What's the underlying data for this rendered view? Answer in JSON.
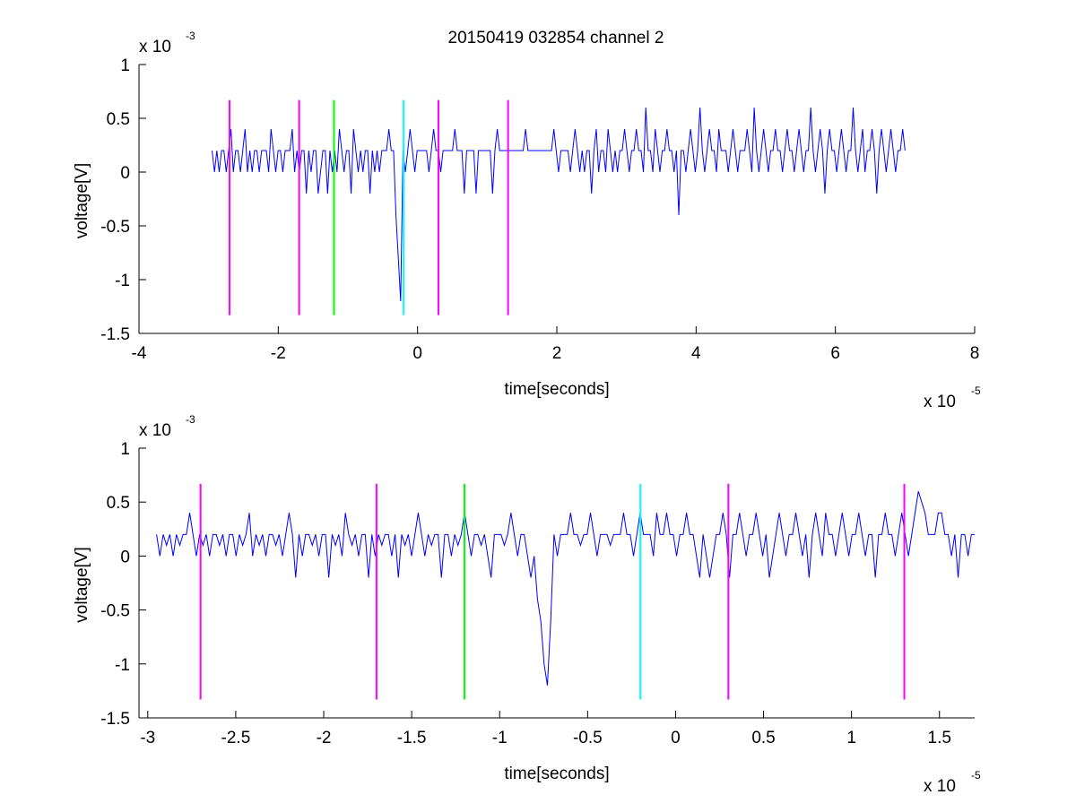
{
  "figure": {
    "title": "20150419 032854 channel 2"
  },
  "chart_data": [
    {
      "type": "line",
      "title": "20150419 032854 channel 2",
      "xlabel": "time[seconds]",
      "ylabel": "voltage[V]",
      "x_exponent_label": "x 10",
      "x_exponent_power": "-5",
      "y_exponent_label": "x 10",
      "y_exponent_power": "-3",
      "xlim": [
        -4,
        8
      ],
      "ylim": [
        -1.5,
        1
      ],
      "xticks": [
        -4,
        -2,
        0,
        2,
        4,
        6,
        8
      ],
      "xtick_labels": [
        "-4",
        "-2",
        "0",
        "2",
        "4",
        "6",
        "8"
      ],
      "yticks": [
        -1.5,
        -1,
        -0.5,
        0,
        0.5,
        1
      ],
      "ytick_labels": [
        "-1.5",
        "-1",
        "-0.5",
        "0",
        "0.5",
        "1"
      ],
      "grid": false,
      "series": [
        {
          "color": "#0000ff",
          "x_start": -2.95,
          "x_end": 7.0,
          "values": [
            0.2,
            0,
            0.2,
            0,
            0.2,
            0.2,
            0,
            0.2,
            0.4,
            0,
            0.2,
            0.2,
            0,
            0.2,
            0.4,
            0,
            0.2,
            0,
            0.2,
            0.2,
            0,
            0.2,
            0.2,
            0.2,
            0,
            0.4,
            0.2,
            0,
            0.2,
            0.2,
            0,
            0.2,
            0.2,
            0.2,
            0.4,
            0,
            0.2,
            0,
            0.2,
            0.2,
            -0.2,
            0.2,
            0,
            0.2,
            0.2,
            -0.2,
            0,
            0.2,
            0.2,
            -0.2,
            0.2,
            0,
            0.2,
            0,
            0.4,
            0.2,
            0,
            0.2,
            0.2,
            -0.2,
            0.4,
            0.2,
            0,
            0.2,
            0,
            0.2,
            0.2,
            -0.2,
            0.2,
            0,
            0.2,
            0,
            0.2,
            0.2,
            0.2,
            0.4,
            0.2,
            0.2,
            -0.4,
            -0.8,
            -1.2,
            0.2,
            0,
            0.2,
            0.4,
            0.2,
            0,
            0.2,
            0.2,
            0.2,
            0.2,
            0.2,
            0,
            0.2,
            0.4,
            0.2,
            0.2,
            0,
            0.2,
            0.2,
            0.2,
            0.2,
            0.2,
            0.4,
            0.2,
            0.2,
            0.2,
            -0.2,
            0.2,
            0.2,
            0.2,
            0.2,
            -0.2,
            0.2,
            0.2,
            0.2,
            0.2,
            0.2,
            0.2,
            -0.2,
            0.2,
            0.4,
            0.2,
            0.2,
            0.2,
            0.2,
            0.2,
            0.2,
            0.2,
            0.2,
            0.2,
            0.2,
            0.2,
            0.4,
            0.2,
            0.2,
            0.2,
            0.2,
            0.2,
            0.2,
            0.2,
            0.2,
            0.2,
            0.2,
            0.2,
            0.4,
            0.2,
            0,
            0.2,
            0.2,
            0.2,
            0.2,
            0,
            0.2,
            0.4,
            0.2,
            0,
            0.2,
            0,
            0.2,
            0.2,
            -0.2,
            0.2,
            0.4,
            0,
            0.2,
            0.2,
            0,
            0.4,
            0.2,
            0,
            0.2,
            0,
            0.2,
            0.2,
            0.4,
            0.2,
            0,
            0.2,
            0.2,
            0.4,
            0.2,
            0.2,
            0,
            0.6,
            0.2,
            0.2,
            0,
            0.4,
            0.2,
            0,
            0.2,
            0.2,
            0.4,
            0.2,
            0.2,
            0,
            0.2,
            -0.4,
            0.2,
            0.2,
            0,
            0.2,
            0.4,
            0.2,
            0,
            0.2,
            0.6,
            0.2,
            0,
            0.2,
            0.4,
            0.2,
            0.2,
            0,
            0.4,
            0.2,
            0.2,
            0.2,
            0,
            0.2,
            0.4,
            0.2,
            0,
            0.2,
            0.2,
            0.2,
            0.4,
            0.2,
            0,
            0.6,
            0.2,
            0,
            0.2,
            0.4,
            0.2,
            0,
            0.2,
            0.2,
            0.4,
            0.2,
            0.2,
            0,
            0.2,
            0.4,
            0.2,
            0.2,
            0,
            0.2,
            0.4,
            0.2,
            0,
            0.2,
            0.2,
            0.6,
            0.2,
            0,
            0.2,
            0.4,
            0.2,
            -0.2,
            0.2,
            0.4,
            0.2,
            0.2,
            0,
            0.2,
            0.4,
            0.2,
            0,
            0.2,
            0.2,
            0.6,
            0.2,
            0,
            0.2,
            0.4,
            0,
            0.2,
            0.2,
            0.4,
            0.2,
            -0.2,
            0.2,
            0.4,
            0.2,
            0,
            0.2,
            0.4,
            0.2,
            0,
            0.2,
            0.2,
            0.4,
            0.2
          ]
        }
      ],
      "markers": [
        {
          "x": -2.7,
          "color": "#ff00ff",
          "ymin": -1.33,
          "ymax": 0.67
        },
        {
          "x": -1.7,
          "color": "#ff00ff",
          "ymin": -1.33,
          "ymax": 0.67
        },
        {
          "x": -1.2,
          "color": "#00ff00",
          "ymin": -1.33,
          "ymax": 0.67
        },
        {
          "x": -0.2,
          "color": "#00ffff",
          "ymin": -1.33,
          "ymax": 0.67
        },
        {
          "x": 0.3,
          "color": "#ff00ff",
          "ymin": -1.33,
          "ymax": 0.67
        },
        {
          "x": 1.3,
          "color": "#ff00ff",
          "ymin": -1.33,
          "ymax": 0.67
        }
      ]
    },
    {
      "type": "line",
      "title": "",
      "xlabel": "time[seconds]",
      "ylabel": "voltage[V]",
      "x_exponent_label": "x 10",
      "x_exponent_power": "-5",
      "y_exponent_label": "x 10",
      "y_exponent_power": "-3",
      "xlim": [
        -3.05,
        1.7
      ],
      "ylim": [
        -1.5,
        1
      ],
      "xticks": [
        -3,
        -2.5,
        -2,
        -1.5,
        -1,
        -0.5,
        0,
        0.5,
        1,
        1.5
      ],
      "xtick_labels": [
        "-3",
        "-2.5",
        "-2",
        "-1.5",
        "-1",
        "-0.5",
        "0",
        "0.5",
        "1",
        "1.5"
      ],
      "yticks": [
        -1.5,
        -1,
        -0.5,
        0,
        0.5,
        1
      ],
      "ytick_labels": [
        "-1.5",
        "-1",
        "-0.5",
        "0",
        "0.5",
        "1"
      ],
      "grid": false,
      "series": [
        {
          "color": "#0000ff",
          "x_start": -2.95,
          "x_end": 1.7,
          "values": [
            0.2,
            0,
            0.2,
            0.1,
            0.2,
            0,
            0.2,
            0.1,
            0.2,
            0.2,
            0.4,
            0.2,
            0,
            0.2,
            0.1,
            0.2,
            0,
            0.2,
            0.2,
            0.1,
            0.2,
            0,
            0.2,
            0.2,
            0,
            0.2,
            0.1,
            0.2,
            0.4,
            0,
            0.2,
            0.1,
            0.2,
            0,
            0.2,
            0.2,
            0.1,
            0.2,
            0,
            0.2,
            0.4,
            0.2,
            -0.2,
            0.2,
            0,
            0.2,
            0.2,
            0.1,
            0.2,
            0,
            0.2,
            0.2,
            -0.2,
            0.2,
            0.1,
            0.2,
            0,
            0.4,
            0.2,
            0.1,
            0.2,
            0,
            0.2,
            0.2,
            -0.2,
            0.2,
            0,
            0.2,
            0.1,
            0.2,
            0.2,
            0,
            0.2,
            -0.2,
            0.2,
            0.1,
            0.2,
            0,
            0.2,
            0.4,
            0.2,
            0,
            0.2,
            0.1,
            0.2,
            0.2,
            -0.2,
            0.2,
            0.2,
            0,
            0.2,
            0.1,
            0.2,
            0.4,
            0.2,
            0,
            0.2,
            0.2,
            0.1,
            0.2,
            0,
            -0.2,
            0.2,
            0.2,
            0.2,
            0.1,
            0.2,
            0.4,
            0.2,
            0,
            0.2,
            0.2,
            0,
            -0.2,
            0,
            -0.4,
            -0.6,
            -1.0,
            -1.2,
            -0.6,
            0.2,
            0,
            0.2,
            0.2,
            0.2,
            0.4,
            0.2,
            0.2,
            0.1,
            0.2,
            0.2,
            0.4,
            0.2,
            0,
            0.2,
            0.2,
            0.2,
            0.1,
            0.2,
            0.2,
            0.2,
            0.4,
            0.2,
            0.2,
            0,
            0.2,
            0.4,
            0.2,
            0.2,
            0.2,
            0,
            0.4,
            0.2,
            0.2,
            0.4,
            0.2,
            0.2,
            0,
            0.2,
            0.2,
            0.4,
            0.2,
            0.2,
            0,
            -0.2,
            0.2,
            0,
            -0.2,
            0,
            0.2,
            0.2,
            0.4,
            0.2,
            -0.2,
            0.2,
            0.2,
            0.4,
            0.2,
            0,
            0.2,
            0.2,
            0.4,
            0.2,
            0,
            0.2,
            -0.2,
            0,
            0.2,
            0.4,
            0.2,
            0,
            0.2,
            0.2,
            0.4,
            0.2,
            0,
            0.2,
            -0.2,
            0.2,
            0.4,
            0.2,
            0,
            0.4,
            0.2,
            0.2,
            0,
            0.2,
            0.4,
            0.2,
            0,
            0.2,
            0.2,
            0.4,
            0.2,
            0,
            0.2,
            0.2,
            -0.2,
            0.2,
            0.2,
            0.4,
            0.2,
            0.2,
            0,
            0.2,
            0.4,
            0.2,
            0,
            0.2,
            0.4,
            0.6,
            0.5,
            0.4,
            0.2,
            0.2,
            0.2,
            0.4,
            0.4,
            0.2,
            0.2,
            0,
            0.2,
            -0.2,
            0.2,
            0.2,
            0,
            0.2,
            0.2
          ]
        }
      ],
      "markers": [
        {
          "x": -2.7,
          "color": "#ff00ff",
          "ymin": -1.33,
          "ymax": 0.67
        },
        {
          "x": -1.7,
          "color": "#ff00ff",
          "ymin": -1.33,
          "ymax": 0.67
        },
        {
          "x": -1.2,
          "color": "#00ff00",
          "ymin": -1.33,
          "ymax": 0.67
        },
        {
          "x": -0.2,
          "color": "#00ffff",
          "ymin": -1.33,
          "ymax": 0.67
        },
        {
          "x": 0.3,
          "color": "#ff00ff",
          "ymin": -1.33,
          "ymax": 0.67
        },
        {
          "x": 1.3,
          "color": "#ff00ff",
          "ymin": -1.33,
          "ymax": 0.67
        }
      ]
    }
  ]
}
